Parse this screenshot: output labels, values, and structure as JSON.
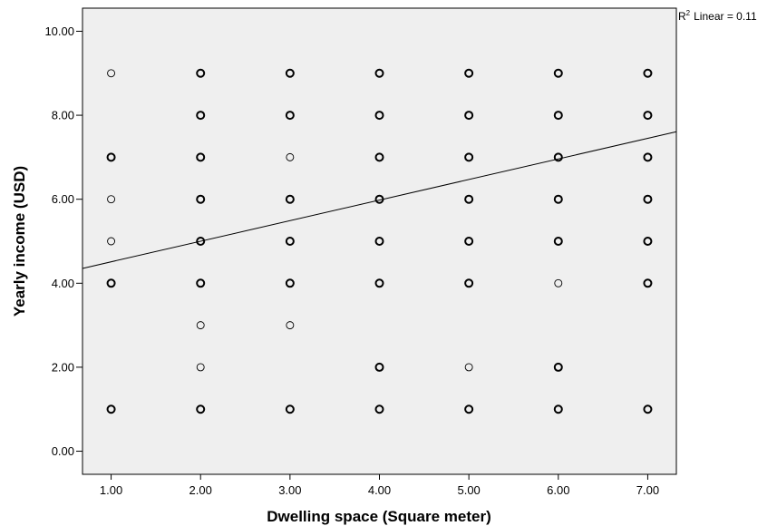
{
  "chart_data": {
    "type": "scatter",
    "xlabel": "Dwelling space (Square meter)",
    "ylabel": "Yearly income (USD)",
    "xlim": [
      0.68,
      7.32
    ],
    "ylim": [
      -0.55,
      10.55
    ],
    "x_ticks": [
      "1.00",
      "2.00",
      "3.00",
      "4.00",
      "5.00",
      "6.00",
      "7.00"
    ],
    "y_ticks": [
      "0.00",
      "2.00",
      "4.00",
      "6.00",
      "8.00",
      "10.00"
    ],
    "grid": false,
    "plot_background": "#efefef",
    "marker_color": "#000000",
    "points": [
      {
        "x": 1,
        "y": 9,
        "bold": false
      },
      {
        "x": 1,
        "y": 7,
        "bold": true
      },
      {
        "x": 1,
        "y": 6,
        "bold": false
      },
      {
        "x": 1,
        "y": 5,
        "bold": false
      },
      {
        "x": 1,
        "y": 4,
        "bold": true
      },
      {
        "x": 1,
        "y": 1,
        "bold": true
      },
      {
        "x": 2,
        "y": 9,
        "bold": true
      },
      {
        "x": 2,
        "y": 8,
        "bold": true
      },
      {
        "x": 2,
        "y": 7,
        "bold": true
      },
      {
        "x": 2,
        "y": 6,
        "bold": true
      },
      {
        "x": 2,
        "y": 5,
        "bold": true
      },
      {
        "x": 2,
        "y": 4,
        "bold": true
      },
      {
        "x": 2,
        "y": 3,
        "bold": false
      },
      {
        "x": 2,
        "y": 2,
        "bold": false
      },
      {
        "x": 2,
        "y": 1,
        "bold": true
      },
      {
        "x": 3,
        "y": 9,
        "bold": true
      },
      {
        "x": 3,
        "y": 8,
        "bold": true
      },
      {
        "x": 3,
        "y": 7,
        "bold": false
      },
      {
        "x": 3,
        "y": 6,
        "bold": true
      },
      {
        "x": 3,
        "y": 5,
        "bold": true
      },
      {
        "x": 3,
        "y": 4,
        "bold": true
      },
      {
        "x": 3,
        "y": 3,
        "bold": false
      },
      {
        "x": 3,
        "y": 1,
        "bold": true
      },
      {
        "x": 4,
        "y": 9,
        "bold": true
      },
      {
        "x": 4,
        "y": 8,
        "bold": true
      },
      {
        "x": 4,
        "y": 7,
        "bold": true
      },
      {
        "x": 4,
        "y": 6,
        "bold": true
      },
      {
        "x": 4,
        "y": 5,
        "bold": true
      },
      {
        "x": 4,
        "y": 4,
        "bold": true
      },
      {
        "x": 4,
        "y": 2,
        "bold": true
      },
      {
        "x": 4,
        "y": 1,
        "bold": true
      },
      {
        "x": 5,
        "y": 9,
        "bold": true
      },
      {
        "x": 5,
        "y": 8,
        "bold": true
      },
      {
        "x": 5,
        "y": 7,
        "bold": true
      },
      {
        "x": 5,
        "y": 6,
        "bold": true
      },
      {
        "x": 5,
        "y": 5,
        "bold": true
      },
      {
        "x": 5,
        "y": 4,
        "bold": true
      },
      {
        "x": 5,
        "y": 2,
        "bold": false
      },
      {
        "x": 5,
        "y": 1,
        "bold": true
      },
      {
        "x": 6,
        "y": 9,
        "bold": true
      },
      {
        "x": 6,
        "y": 8,
        "bold": true
      },
      {
        "x": 6,
        "y": 7,
        "bold": true
      },
      {
        "x": 6,
        "y": 6,
        "bold": true
      },
      {
        "x": 6,
        "y": 5,
        "bold": true
      },
      {
        "x": 6,
        "y": 4,
        "bold": false
      },
      {
        "x": 6,
        "y": 2,
        "bold": true
      },
      {
        "x": 6,
        "y": 1,
        "bold": true
      },
      {
        "x": 7,
        "y": 9,
        "bold": true
      },
      {
        "x": 7,
        "y": 8,
        "bold": true
      },
      {
        "x": 7,
        "y": 7,
        "bold": true
      },
      {
        "x": 7,
        "y": 6,
        "bold": true
      },
      {
        "x": 7,
        "y": 5,
        "bold": true
      },
      {
        "x": 7,
        "y": 4,
        "bold": true
      },
      {
        "x": 7,
        "y": 1,
        "bold": true
      }
    ],
    "fit_line": {
      "method": "Linear",
      "intercept": 4.02,
      "slope": 0.49,
      "r2_symbol": "R",
      "r2_superscript": "2",
      "r2_text": "Linear = 0.11"
    }
  }
}
